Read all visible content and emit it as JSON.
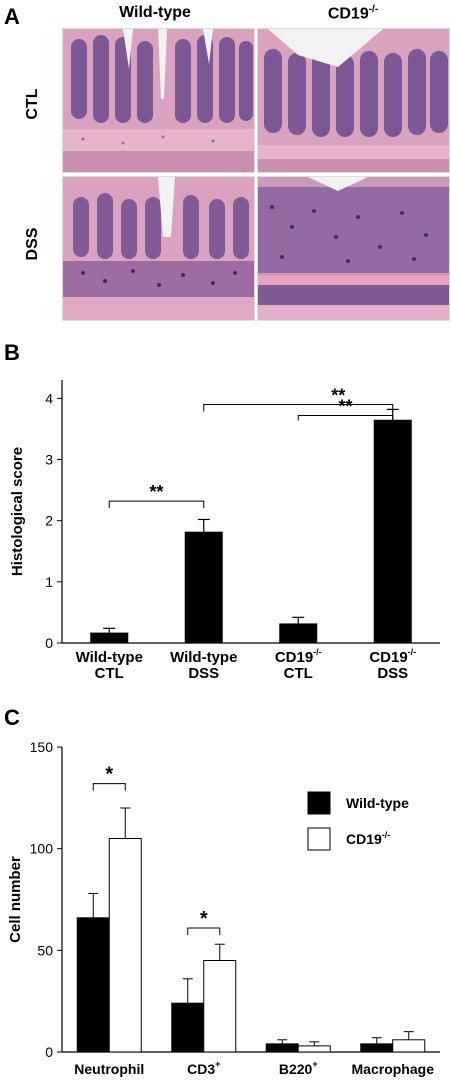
{
  "panelA": {
    "letter": "A",
    "col_heads": [
      "Wild-type",
      "CD19"
    ],
    "col_head_sup": "-/-",
    "row_labels": [
      "CTL",
      "DSS"
    ],
    "colors": {
      "tissue_pink": "#d9a3c0",
      "crypt_purple": "#6b4a8e",
      "nuclei": "#3d2a6b",
      "lumen": "#f2f2f2"
    }
  },
  "panelB": {
    "letter": "B",
    "chart_data": {
      "type": "bar",
      "ylabel": "Histological score",
      "ylim": [
        0,
        4.3
      ],
      "yticks": [
        0,
        1,
        2,
        3,
        4
      ],
      "categories": [
        {
          "line1": "Wild-type",
          "line2": "CTL",
          "sup1": ""
        },
        {
          "line1": "Wild-type",
          "line2": "DSS",
          "sup1": ""
        },
        {
          "line1": "CD19",
          "line2": "CTL",
          "sup1": "-/-"
        },
        {
          "line1": "CD19",
          "line2": "DSS",
          "sup1": "-/-"
        }
      ],
      "values": [
        0.17,
        1.82,
        0.32,
        3.65
      ],
      "errors": [
        0.07,
        0.2,
        0.1,
        0.17
      ],
      "bar_color": "#000000",
      "significance": [
        {
          "from": 0,
          "to": 1,
          "label": "**"
        },
        {
          "from": 1,
          "to": 3,
          "label": "**"
        },
        {
          "from": 2,
          "to": 3,
          "label": "**"
        }
      ]
    }
  },
  "panelC": {
    "letter": "C",
    "chart_data": {
      "type": "bar",
      "ylabel": "Cell number",
      "ylim": [
        0,
        150
      ],
      "yticks": [
        0,
        50,
        100,
        150
      ],
      "categories": [
        {
          "label": "Neutrophil",
          "sup": ""
        },
        {
          "label": "CD3",
          "sup": "+"
        },
        {
          "label": "B220",
          "sup": "+"
        },
        {
          "label": "Macrophage",
          "sup": ""
        }
      ],
      "series": [
        {
          "name": "Wild-type",
          "name_sup": "",
          "fill": "#000000",
          "values": [
            66,
            24,
            4,
            4
          ],
          "errors": [
            12,
            12,
            2,
            3
          ]
        },
        {
          "name": "CD19",
          "name_sup": "-/-",
          "fill": "#ffffff",
          "values": [
            105,
            45,
            3,
            6
          ],
          "errors": [
            15,
            8,
            2,
            4
          ]
        }
      ],
      "significance": [
        {
          "category": 0,
          "label": "*"
        },
        {
          "category": 1,
          "label": "*"
        }
      ],
      "legend": "top-right"
    }
  }
}
